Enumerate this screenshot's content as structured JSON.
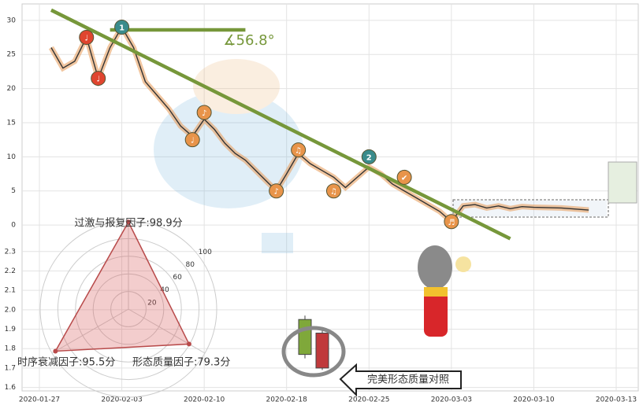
{
  "chart_data": {
    "type": "line",
    "xticks": [
      "2020-01-27",
      "2020-02-03",
      "2020-02-10",
      "2020-02-18",
      "2020-02-25",
      "2020-03-03",
      "2020-03-10",
      "2020-03-13"
    ],
    "ylim": [
      -1.6,
      32.4
    ],
    "yticks": [
      0,
      5,
      10,
      15,
      20,
      25,
      30
    ],
    "y2lim": [
      1.57,
      2.36
    ],
    "y2ticks": [
      1.6,
      1.7,
      1.8,
      1.9,
      {
        "value": 2,
        "label": "2.0"
      },
      2.1,
      2.2,
      2.3
    ],
    "grid": true,
    "series": [
      {
        "color": "#333333",
        "x": [
          "2020-01-28",
          "2020-01-29",
          "2020-01-30",
          "2020-01-31",
          "2020-02-01",
          "2020-02-02",
          "2020-02-03",
          "2020-02-04",
          "2020-02-05",
          "2020-02-06",
          "2020-02-07",
          "2020-02-08",
          "2020-02-09",
          "2020-02-10",
          "2020-02-11",
          "2020-02-12",
          "2020-02-13",
          "2020-02-14",
          "2020-02-15",
          "2020-02-16",
          "2020-02-17",
          "2020-02-18",
          "2020-02-19",
          "2020-02-20",
          "2020-02-21",
          "2020-02-22",
          "2020-02-23",
          "2020-02-24",
          "2020-02-25",
          "2020-02-26",
          "2020-02-27",
          "2020-02-28",
          "2020-02-29",
          "2020-03-01",
          "2020-03-02",
          "2020-03-03",
          "2020-03-04",
          "2020-03-05",
          "2020-03-06",
          "2020-03-07",
          "2020-03-08",
          "2020-03-09",
          "2020-03-10",
          "2020-03-11",
          "2020-03-12"
        ],
        "values": [
          26,
          23,
          24,
          27.5,
          21.5,
          26,
          29,
          26,
          21,
          19,
          17,
          14.5,
          13,
          15.5,
          14,
          12,
          10.5,
          9.5,
          8,
          6.5,
          5,
          7.5,
          10.5,
          9,
          8,
          7,
          5.5,
          7,
          8.5,
          7.5,
          6,
          5,
          4,
          3,
          2,
          0.5,
          2.8,
          3,
          2.5,
          2.8,
          2.4,
          2.7,
          2.6,
          2.5,
          2.2
        ]
      }
    ],
    "trendlines": [
      {
        "color": "#76973a",
        "x": [
          "2020-01-28",
          "2020-03-08"
        ],
        "values": [
          31.5,
          -2
        ]
      },
      {
        "color": "#76973a",
        "x": [
          "2020-02-02",
          "2020-02-14"
        ],
        "values": [
          28.6,
          28.6
        ]
      }
    ],
    "angle_label": "∡56.8°",
    "markers": [
      {
        "x": "2020-01-31",
        "value": 27.5,
        "label": "♩",
        "color": "#e0452f"
      },
      {
        "x": "2020-02-01",
        "value": 21.5,
        "label": "♩",
        "color": "#e0452f"
      },
      {
        "x": "2020-02-03",
        "value": 29,
        "label": "1",
        "color": "#3a8c8c"
      },
      {
        "x": "2020-02-09",
        "value": 12.5,
        "label": "♩",
        "color": "#e8944a"
      },
      {
        "x": "2020-02-10",
        "value": 16.5,
        "label": "♪",
        "color": "#e8944a"
      },
      {
        "x": "2020-02-17",
        "value": 5,
        "label": "♪",
        "color": "#e8944a"
      },
      {
        "x": "2020-02-19",
        "value": 11,
        "label": "♫",
        "color": "#e8944a"
      },
      {
        "x": "2020-02-22",
        "value": 5,
        "label": "♫",
        "color": "#e8944a"
      },
      {
        "x": "2020-02-25",
        "value": 10,
        "label": "2",
        "color": "#3a8c8c"
      },
      {
        "x": "2020-02-28",
        "value": 7,
        "label": "✔",
        "color": "#e8944a"
      },
      {
        "x": "2020-03-03",
        "value": 0.5,
        "label": "♬",
        "color": "#e8944a"
      }
    ],
    "candles": [
      {
        "color": "#7fa83a",
        "open": 1.77,
        "close": 1.95,
        "high": 1.97,
        "low": 1.75
      },
      {
        "color": "#c0393b",
        "open": 1.88,
        "close": 1.7,
        "high": 1.9,
        "low": 1.69
      }
    ],
    "compare_label": "完美形态质量对照",
    "radar": {
      "labels": [
        "过激与报复因子:98.9分",
        "时序衰减因子:95.5分",
        "形态质量因子:79.3分"
      ],
      "values": [
        98.9,
        95.5,
        79.3
      ],
      "rlim": [
        0,
        100
      ],
      "rticks": [
        20,
        40,
        60,
        80,
        100
      ]
    }
  }
}
